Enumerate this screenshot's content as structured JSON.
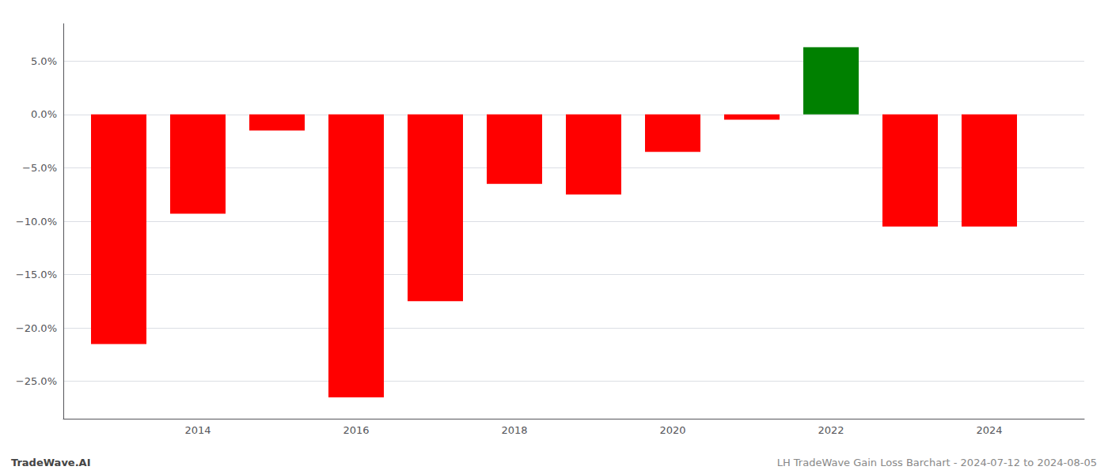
{
  "chart_data": {
    "type": "bar",
    "x": [
      2013,
      2014,
      2015,
      2016,
      2017,
      2018,
      2019,
      2020,
      2021,
      2022,
      2023,
      2024
    ],
    "values": [
      -0.215,
      -0.093,
      -0.015,
      -0.265,
      -0.175,
      -0.065,
      -0.075,
      -0.035,
      -0.005,
      0.063,
      -0.105,
      -0.105
    ],
    "colors": [
      "#ff0000",
      "#ff0000",
      "#ff0000",
      "#ff0000",
      "#ff0000",
      "#ff0000",
      "#ff0000",
      "#ff0000",
      "#ff0000",
      "#008000",
      "#ff0000",
      "#ff0000"
    ],
    "xlim": [
      2012.3,
      2025.2
    ],
    "xticks": [
      2014,
      2016,
      2018,
      2020,
      2022,
      2024
    ],
    "ylim": [
      -0.285,
      0.085
    ],
    "yticks": [
      {
        "value": -0.25,
        "label": "−25.0%"
      },
      {
        "value": -0.2,
        "label": "−20.0%"
      },
      {
        "value": -0.15,
        "label": "−15.0%"
      },
      {
        "value": -0.1,
        "label": "−10.0%"
      },
      {
        "value": -0.05,
        "label": "−5.0%"
      },
      {
        "value": 0,
        "label": "0.0%"
      },
      {
        "value": 0.05,
        "label": "5.0%"
      }
    ],
    "grid": true,
    "annotations": [
      "TradeWave.AI",
      "LH TradeWave Gain Loss Barchart - 2024-07-12 to 2024-08-05"
    ]
  }
}
